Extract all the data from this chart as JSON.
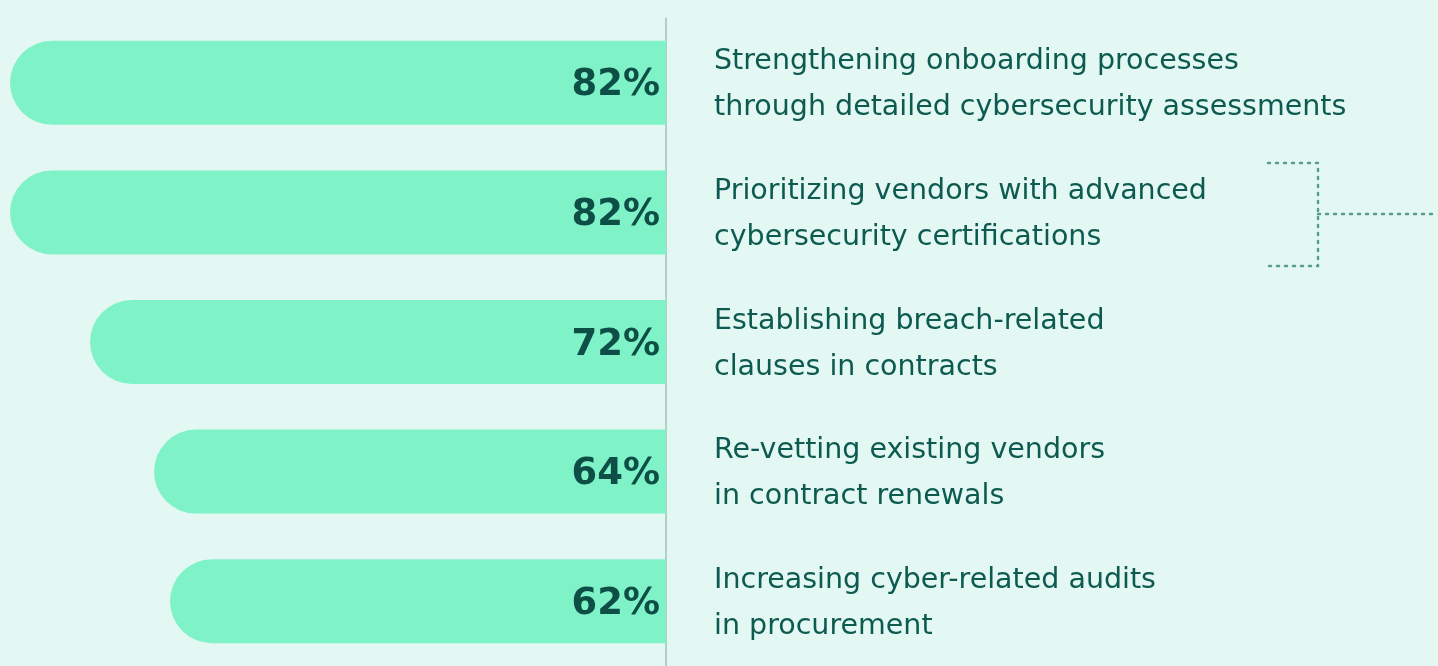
{
  "chart_data": {
    "type": "bar",
    "orientation": "horizontal",
    "categories": [
      "Strengthening onboarding processes\nthrough detailed cybersecurity assessments",
      "Prioritizing vendors with advanced\ncybersecurity certifications",
      "Establishing breach-related\nclauses in contracts",
      "Re-vetting existing vendors\nin contract renewals",
      "Increasing cyber-related audits\nin procurement"
    ],
    "values": [
      82,
      82,
      72,
      64,
      62
    ],
    "color": "#80f2c8",
    "value_labels": [
      "82%",
      "82%",
      "72%",
      "64%",
      "62%"
    ]
  }
}
